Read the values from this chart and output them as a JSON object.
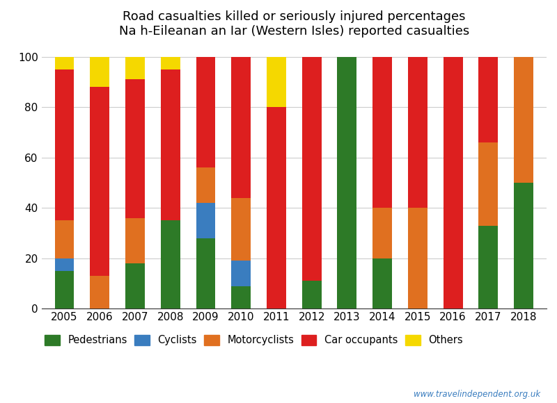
{
  "years": [
    2005,
    2006,
    2007,
    2008,
    2009,
    2010,
    2011,
    2012,
    2013,
    2014,
    2015,
    2016,
    2017,
    2018
  ],
  "pedestrians": [
    15,
    0,
    18,
    35,
    28,
    9,
    0,
    11,
    100,
    20,
    0,
    0,
    33,
    50
  ],
  "cyclists": [
    5,
    0,
    0,
    0,
    14,
    10,
    0,
    0,
    0,
    0,
    0,
    0,
    0,
    0
  ],
  "motorcyclists": [
    15,
    13,
    18,
    0,
    14,
    25,
    0,
    0,
    0,
    20,
    40,
    0,
    33,
    50
  ],
  "car_occupants": [
    60,
    75,
    55,
    60,
    44,
    56,
    80,
    89,
    0,
    60,
    60,
    100,
    34,
    0
  ],
  "others": [
    5,
    12,
    9,
    5,
    0,
    0,
    20,
    0,
    0,
    0,
    0,
    0,
    0,
    0
  ],
  "colors": {
    "pedestrians": "#2d7a27",
    "cyclists": "#3a7dbf",
    "motorcyclists": "#e07020",
    "car_occupants": "#dd1f1f",
    "others": "#f5d800"
  },
  "title_line1": "Road casualties killed or seriously injured percentages",
  "title_line2": "Na h-Eileanan an Iar (Western Isles) reported casualties",
  "watermark": "www.travelindependent.org.uk",
  "legend_labels": [
    "Pedestrians",
    "Cyclists",
    "Motorcyclists",
    "Car occupants",
    "Others"
  ],
  "ylim": [
    0,
    105
  ],
  "bar_width": 0.55
}
